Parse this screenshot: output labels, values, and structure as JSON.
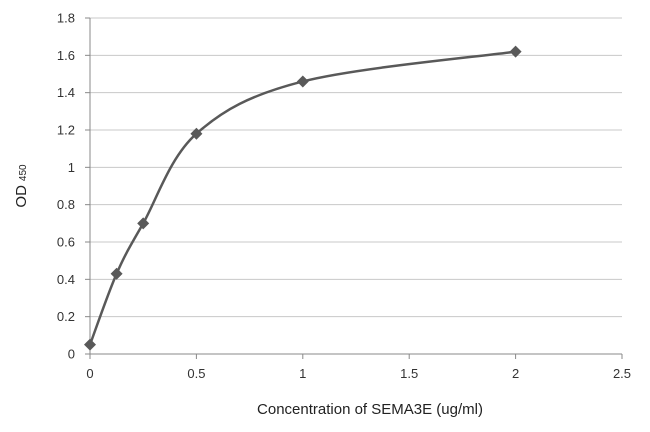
{
  "chart_data": {
    "type": "line",
    "title": "",
    "xlabel": "Concentration of  SEMA3E (ug/ml)",
    "ylabel": "OD",
    "ylabel_subscript": "450",
    "xlim": [
      0,
      2.5
    ],
    "ylim": [
      0,
      1.8
    ],
    "x_ticks": [
      "0",
      "0.5",
      "1",
      "1.5",
      "2",
      "2.5"
    ],
    "x_tick_values": [
      0,
      0.5,
      1,
      1.5,
      2,
      2.5
    ],
    "y_ticks": [
      "0",
      "0.2",
      "0.4",
      "0.6",
      "0.8",
      "1",
      "1.2",
      "1.4",
      "1.6",
      "1.8"
    ],
    "y_tick_values": [
      0,
      0.2,
      0.4,
      0.6,
      0.8,
      1,
      1.2,
      1.4,
      1.6,
      1.8
    ],
    "grid": "horizontal",
    "legend": "none",
    "smooth": true,
    "marker": "diamond",
    "series": [
      {
        "x": [
          0,
          0.125,
          0.25,
          0.5,
          1,
          2
        ],
        "values": [
          0.05,
          0.43,
          0.7,
          1.18,
          1.46,
          1.62
        ],
        "color": "#595959"
      }
    ]
  }
}
